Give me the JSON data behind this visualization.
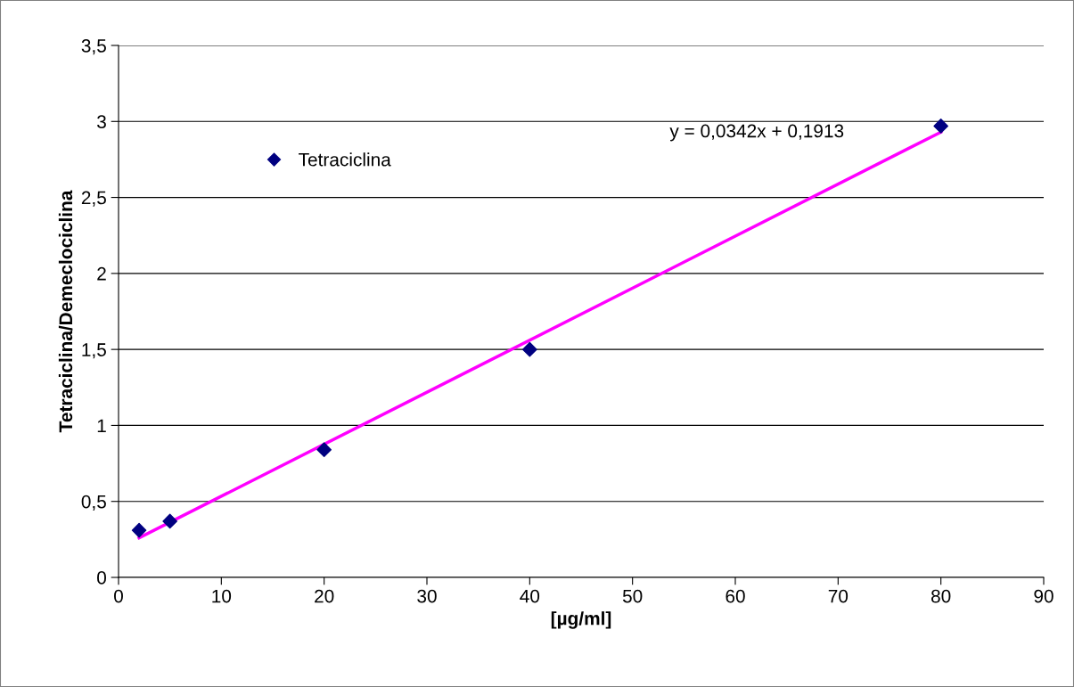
{
  "chart_data": {
    "type": "scatter",
    "xlabel": "[µg/ml]",
    "ylabel": "Tetraciclina/Demeclociclina",
    "series": [
      {
        "name": "Tetraciclina",
        "color": "#000080",
        "marker": "diamond",
        "x": [
          2,
          5,
          20,
          40,
          80
        ],
        "values": [
          0.31,
          0.37,
          0.84,
          1.5,
          2.97
        ]
      },
      {
        "type": "line",
        "color": "#ff00ff",
        "marker": "none",
        "line_style": "solid",
        "x": [
          2,
          80
        ],
        "values": [
          0.26,
          2.93
        ]
      }
    ],
    "annotations": [
      "y = 0,0342x + 0,1913"
    ],
    "xlim": [
      0,
      90
    ],
    "xticks": [
      0,
      10,
      20,
      30,
      40,
      50,
      60,
      70,
      80,
      90
    ],
    "ylim": [
      0,
      3.5
    ],
    "yticks": [
      0,
      {
        "value": 0.5,
        "label": "0,5"
      },
      1,
      {
        "value": 1.5,
        "label": "1,5"
      },
      2,
      {
        "value": 2.5,
        "label": "2,5"
      },
      3,
      {
        "value": 3.5,
        "label": "3,5"
      }
    ],
    "grid": "y",
    "legend": "top left"
  }
}
